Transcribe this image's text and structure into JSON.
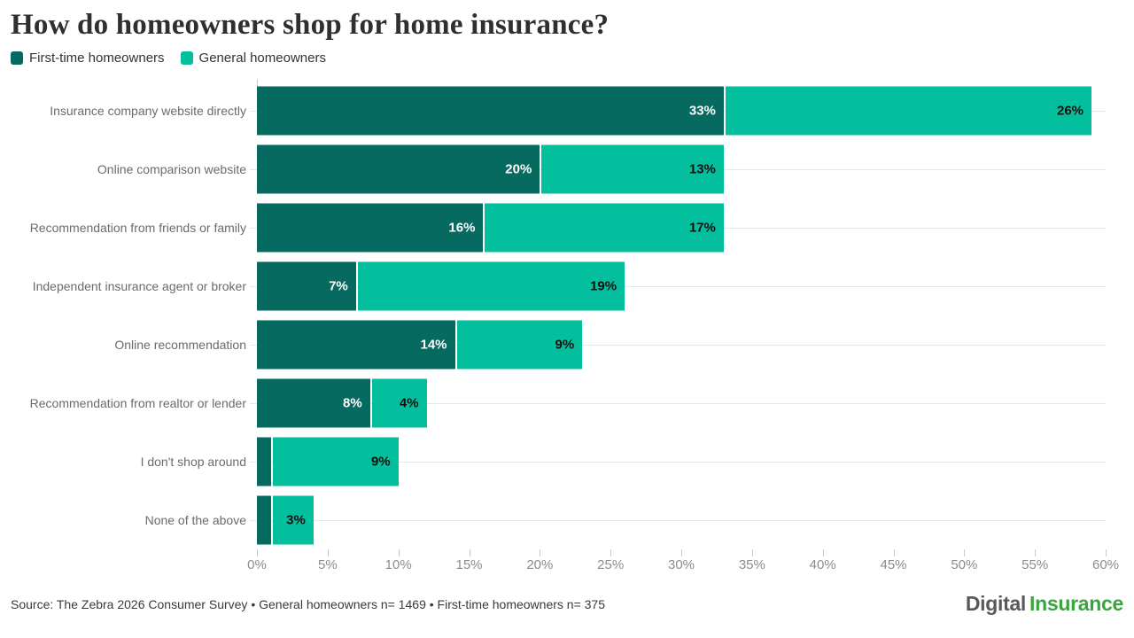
{
  "title": "How do homeowners shop for home insurance?",
  "colors": {
    "first_time": "#066a60",
    "general": "#04bf9d",
    "label_on_dark": "#ffffff",
    "label_on_light": "#111111",
    "logo_gray": "#58595b",
    "logo_green": "#3aa53f"
  },
  "legend": {
    "items": [
      {
        "label": "First-time homeowners",
        "color": "#066a60"
      },
      {
        "label": "General homeowners",
        "color": "#04bf9d"
      }
    ]
  },
  "chart_data": {
    "type": "bar",
    "orientation": "horizontal",
    "stacked": true,
    "categories": [
      "Insurance company website directly",
      "Online comparison website",
      "Recommendation from friends or family",
      "Independent insurance agent or broker",
      "Online recommendation",
      "Recommendation from realtor or lender",
      "I don't shop around",
      "None of the above"
    ],
    "series": [
      {
        "name": "First-time homeowners",
        "color": "#066a60",
        "values": [
          33,
          20,
          16,
          7,
          14,
          8,
          1,
          1
        ]
      },
      {
        "name": "General homeowners",
        "color": "#04bf9d",
        "values": [
          26,
          13,
          17,
          19,
          9,
          4,
          9,
          3
        ]
      }
    ],
    "xlim": [
      0,
      60
    ],
    "tick_step": 5,
    "tick_labels": [
      "0%",
      "5%",
      "10%",
      "15%",
      "20%",
      "25%",
      "30%",
      "35%",
      "40%",
      "45%",
      "50%",
      "55%",
      "60%"
    ],
    "grid": "horizontal-row-lines",
    "legend_position": "top-left",
    "value_label_format": "percent"
  },
  "footer": {
    "source": "Source: The Zebra 2026 Consumer Survey • General homeowners n= 1469 • First-time homeowners n= 375",
    "logo": {
      "part1": "Digital",
      "part2": "Insurance"
    }
  }
}
